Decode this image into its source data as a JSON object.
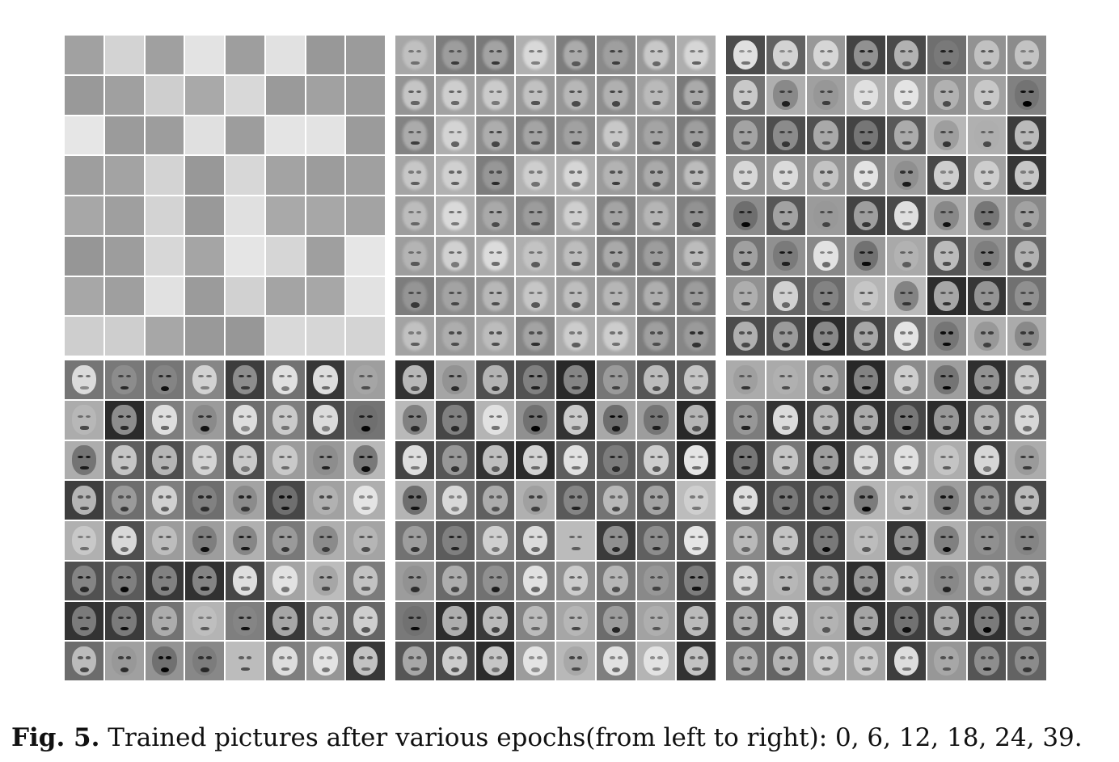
{
  "figure": {
    "caption_label": "Fig. 5.",
    "caption_text": " Trained pictures after various epochs(from left to right): 0, 6, 12, 18, 24, 39.",
    "panels": [
      {
        "epoch": 0,
        "style": "noise"
      },
      {
        "epoch": 6,
        "style": "blurry"
      },
      {
        "epoch": 12,
        "style": "faces"
      },
      {
        "epoch": 18,
        "style": "faces"
      },
      {
        "epoch": 24,
        "style": "faces"
      },
      {
        "epoch": 39,
        "style": "faces"
      }
    ],
    "grid_rows": 8,
    "grid_cols": 8
  }
}
